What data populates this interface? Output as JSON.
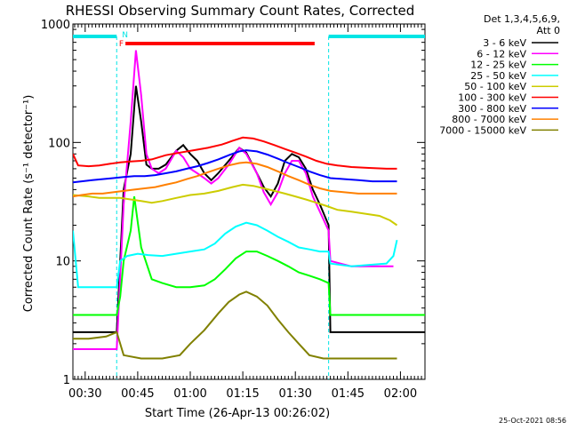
{
  "chart_data": {
    "type": "line",
    "title": "RHESSI Observing Summary Count Rates, Corrected",
    "xlabel": "Start Time (26-Apr-13 00:26:02)",
    "ylabel": "Corrected Count Rate (s⁻¹ detector⁻¹)",
    "y_scale": "log",
    "ylim": [
      1,
      1000
    ],
    "xlim_minutes": [
      0.5,
      101
    ],
    "x_ticks": [
      {
        "label": "00:30",
        "minute": 4
      },
      {
        "label": "00:45",
        "minute": 19
      },
      {
        "label": "01:00",
        "minute": 34
      },
      {
        "label": "01:15",
        "minute": 49
      },
      {
        "label": "01:30",
        "minute": 64
      },
      {
        "label": "01:45",
        "minute": 79
      },
      {
        "label": "02:00",
        "minute": 94
      }
    ],
    "y_ticks": [
      {
        "label": "1",
        "value": 1
      },
      {
        "label": "10",
        "value": 10
      },
      {
        "label": "100",
        "value": 100
      },
      {
        "label": "1000",
        "value": 1000
      }
    ],
    "legend_position": "right",
    "legend_header": [
      "Det 1,3,4,5,6,9,",
      "Att 0"
    ],
    "timestamp": "25-Oct-2021 08:56",
    "flags": {
      "night_label": "N",
      "flare_label": "F",
      "night_intervals": [
        [
          0.5,
          13
        ],
        [
          73.5,
          101
        ]
      ],
      "flare_interval": [
        15.5,
        69.5
      ],
      "night_color": "#00e5e5",
      "flare_color": "#ff0000"
    },
    "series": [
      {
        "name": "3 - 6 keV",
        "color": "#000000",
        "points": [
          [
            0.5,
            2.5
          ],
          [
            13,
            2.5
          ],
          [
            15,
            40
          ],
          [
            17,
            80
          ],
          [
            18.5,
            300
          ],
          [
            20,
            150
          ],
          [
            21.5,
            65
          ],
          [
            23,
            60
          ],
          [
            25,
            60
          ],
          [
            27,
            65
          ],
          [
            30,
            85
          ],
          [
            32,
            95
          ],
          [
            34,
            80
          ],
          [
            36,
            70
          ],
          [
            38,
            55
          ],
          [
            40,
            48
          ],
          [
            42,
            55
          ],
          [
            45,
            70
          ],
          [
            48,
            90
          ],
          [
            50,
            82
          ],
          [
            53,
            55
          ],
          [
            55,
            42
          ],
          [
            57,
            35
          ],
          [
            59,
            45
          ],
          [
            61,
            70
          ],
          [
            63,
            80
          ],
          [
            65,
            75
          ],
          [
            67,
            60
          ],
          [
            69,
            40
          ],
          [
            71,
            30
          ],
          [
            73.5,
            20
          ],
          [
            74,
            2.5
          ],
          [
            101,
            2.5
          ]
        ]
      },
      {
        "name": "6 - 12 keV",
        "color": "#ff00ff",
        "points": [
          [
            0.5,
            1.8
          ],
          [
            13,
            1.8
          ],
          [
            15,
            30
          ],
          [
            17,
            150
          ],
          [
            18.5,
            600
          ],
          [
            20,
            250
          ],
          [
            21.5,
            80
          ],
          [
            23,
            60
          ],
          [
            25,
            55
          ],
          [
            27,
            60
          ],
          [
            30,
            85
          ],
          [
            32,
            75
          ],
          [
            34,
            60
          ],
          [
            36,
            55
          ],
          [
            38,
            50
          ],
          [
            40,
            45
          ],
          [
            42,
            50
          ],
          [
            45,
            65
          ],
          [
            48,
            90
          ],
          [
            50,
            80
          ],
          [
            53,
            55
          ],
          [
            55,
            38
          ],
          [
            57,
            30
          ],
          [
            59,
            38
          ],
          [
            61,
            55
          ],
          [
            63,
            70
          ],
          [
            65,
            70
          ],
          [
            67,
            55
          ],
          [
            69,
            35
          ],
          [
            71,
            26
          ],
          [
            73.5,
            18
          ],
          [
            74,
            10
          ],
          [
            80,
            9
          ],
          [
            88,
            9
          ],
          [
            92,
            9
          ]
        ]
      },
      {
        "name": "12 - 25 keV",
        "color": "#00ff00",
        "points": [
          [
            0.5,
            3.5
          ],
          [
            13,
            3.5
          ],
          [
            14,
            5
          ],
          [
            15,
            10
          ],
          [
            17,
            18
          ],
          [
            18,
            35
          ],
          [
            20,
            13
          ],
          [
            23,
            7
          ],
          [
            26,
            6.5
          ],
          [
            30,
            6
          ],
          [
            34,
            6
          ],
          [
            38,
            6.2
          ],
          [
            41,
            7
          ],
          [
            44,
            8.5
          ],
          [
            47,
            10.5
          ],
          [
            50,
            12
          ],
          [
            53,
            12
          ],
          [
            56,
            11
          ],
          [
            59,
            10
          ],
          [
            62,
            9
          ],
          [
            65,
            8
          ],
          [
            68,
            7.5
          ],
          [
            71,
            7
          ],
          [
            73.5,
            6.5
          ],
          [
            74,
            3.5
          ],
          [
            101,
            3.5
          ]
        ]
      },
      {
        "name": "25 - 50 keV",
        "color": "#00ffff",
        "points": [
          [
            0.5,
            18
          ],
          [
            2,
            6
          ],
          [
            13,
            6
          ],
          [
            14,
            10
          ],
          [
            16,
            11
          ],
          [
            19,
            11.5
          ],
          [
            22,
            11.2
          ],
          [
            26,
            11
          ],
          [
            30,
            11.5
          ],
          [
            34,
            12
          ],
          [
            38,
            12.5
          ],
          [
            41,
            14
          ],
          [
            44,
            17
          ],
          [
            47,
            19.5
          ],
          [
            50,
            21
          ],
          [
            53,
            20
          ],
          [
            56,
            18
          ],
          [
            59,
            16
          ],
          [
            62,
            14.5
          ],
          [
            65,
            13
          ],
          [
            68,
            12.5
          ],
          [
            71,
            12
          ],
          [
            73.5,
            12
          ],
          [
            74,
            9.5
          ],
          [
            80,
            9
          ],
          [
            90,
            9.5
          ],
          [
            92,
            11
          ],
          [
            93,
            15
          ]
        ]
      },
      {
        "name": "50 - 100 keV",
        "color": "#cccc00",
        "points": [
          [
            0.5,
            36
          ],
          [
            5,
            35
          ],
          [
            8,
            34
          ],
          [
            11,
            34
          ],
          [
            14,
            34
          ],
          [
            17,
            33
          ],
          [
            20,
            32
          ],
          [
            23,
            31
          ],
          [
            26,
            32
          ],
          [
            30,
            34
          ],
          [
            34,
            36
          ],
          [
            38,
            37
          ],
          [
            42,
            39
          ],
          [
            46,
            42
          ],
          [
            49,
            44
          ],
          [
            52,
            43
          ],
          [
            55,
            41
          ],
          [
            58,
            39
          ],
          [
            61,
            37
          ],
          [
            64,
            35
          ],
          [
            67,
            33
          ],
          [
            70,
            31
          ],
          [
            73,
            29
          ],
          [
            76,
            27
          ],
          [
            80,
            26
          ],
          [
            84,
            25
          ],
          [
            88,
            24
          ],
          [
            91,
            22
          ],
          [
            93,
            20
          ]
        ]
      },
      {
        "name": "100 - 300 keV",
        "color": "#ff0000",
        "points": [
          [
            0.5,
            80
          ],
          [
            2,
            64
          ],
          [
            5,
            63
          ],
          [
            8,
            64
          ],
          [
            11,
            66
          ],
          [
            14,
            68
          ],
          [
            17,
            69
          ],
          [
            20,
            70
          ],
          [
            23,
            72
          ],
          [
            27,
            78
          ],
          [
            31,
            82
          ],
          [
            35,
            86
          ],
          [
            39,
            90
          ],
          [
            43,
            96
          ],
          [
            46,
            103
          ],
          [
            49,
            110
          ],
          [
            52,
            108
          ],
          [
            55,
            102
          ],
          [
            58,
            95
          ],
          [
            61,
            88
          ],
          [
            64,
            82
          ],
          [
            67,
            76
          ],
          [
            70,
            70
          ],
          [
            73,
            66
          ],
          [
            76,
            64
          ],
          [
            80,
            62
          ],
          [
            85,
            61
          ],
          [
            90,
            60
          ],
          [
            93,
            60
          ]
        ]
      },
      {
        "name": "300 - 800 keV",
        "color": "#0000ff",
        "points": [
          [
            0.5,
            46
          ],
          [
            3,
            47
          ],
          [
            6,
            48
          ],
          [
            9,
            49
          ],
          [
            12,
            50
          ],
          [
            15,
            51
          ],
          [
            18,
            52
          ],
          [
            21,
            52
          ],
          [
            24,
            53
          ],
          [
            27,
            55
          ],
          [
            30,
            57
          ],
          [
            33,
            60
          ],
          [
            36,
            63
          ],
          [
            39,
            67
          ],
          [
            42,
            72
          ],
          [
            45,
            78
          ],
          [
            48,
            84
          ],
          [
            50,
            86
          ],
          [
            53,
            84
          ],
          [
            56,
            79
          ],
          [
            59,
            73
          ],
          [
            62,
            67
          ],
          [
            65,
            62
          ],
          [
            68,
            57
          ],
          [
            71,
            53
          ],
          [
            74,
            50
          ],
          [
            78,
            49
          ],
          [
            82,
            48
          ],
          [
            86,
            47
          ],
          [
            90,
            47
          ],
          [
            93,
            47
          ]
        ]
      },
      {
        "name": "800 - 7000 keV",
        "color": "#ff8000",
        "points": [
          [
            0.5,
            35
          ],
          [
            3,
            36
          ],
          [
            6,
            37
          ],
          [
            9,
            37
          ],
          [
            12,
            38
          ],
          [
            15,
            39
          ],
          [
            18,
            40
          ],
          [
            21,
            41
          ],
          [
            24,
            42
          ],
          [
            27,
            44
          ],
          [
            30,
            46
          ],
          [
            33,
            49
          ],
          [
            36,
            52
          ],
          [
            39,
            56
          ],
          [
            42,
            60
          ],
          [
            45,
            64
          ],
          [
            48,
            67
          ],
          [
            50,
            68
          ],
          [
            53,
            66
          ],
          [
            56,
            62
          ],
          [
            59,
            57
          ],
          [
            62,
            52
          ],
          [
            65,
            48
          ],
          [
            68,
            44
          ],
          [
            71,
            41
          ],
          [
            74,
            39
          ],
          [
            78,
            38
          ],
          [
            82,
            37
          ],
          [
            86,
            37
          ],
          [
            90,
            37
          ],
          [
            93,
            37
          ]
        ]
      },
      {
        "name": "7000 - 15000 keV",
        "color": "#808000",
        "points": [
          [
            0.5,
            2.2
          ],
          [
            5,
            2.2
          ],
          [
            10,
            2.3
          ],
          [
            13,
            2.5
          ],
          [
            15,
            1.6
          ],
          [
            20,
            1.5
          ],
          [
            26,
            1.5
          ],
          [
            31,
            1.6
          ],
          [
            34,
            2
          ],
          [
            38,
            2.6
          ],
          [
            42,
            3.6
          ],
          [
            45,
            4.5
          ],
          [
            48,
            5.2
          ],
          [
            50,
            5.5
          ],
          [
            53,
            5
          ],
          [
            56,
            4.2
          ],
          [
            59,
            3.2
          ],
          [
            62,
            2.5
          ],
          [
            65,
            2
          ],
          [
            68,
            1.6
          ],
          [
            72,
            1.5
          ],
          [
            76,
            1.5
          ],
          [
            80,
            1.5
          ],
          [
            85,
            1.5
          ],
          [
            90,
            1.5
          ],
          [
            93,
            1.5
          ]
        ]
      }
    ]
  }
}
